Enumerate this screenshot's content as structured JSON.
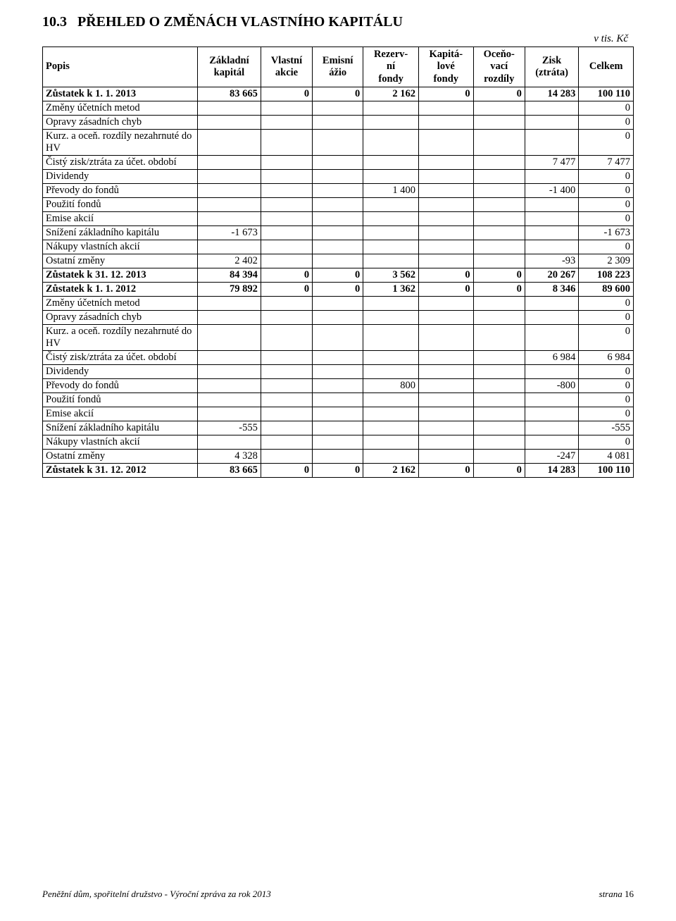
{
  "section_number": "10.3",
  "section_title": "PŘEHLED O ZMĚNÁCH VLASTNÍHO KAPITÁLU",
  "unit_note": "v tis. Kč",
  "columns": [
    "Popis",
    "Základní\nkapitál",
    "Vlastní\nakcie",
    "Emisní\nážio",
    "Rezerv-\nní\nfondy",
    "Kapitá-\nlové\nfondy",
    "Oceňo-\nvací\nrozdíly",
    "Zisk\n(ztráta)",
    "Celkem"
  ],
  "rows": [
    {
      "bold": true,
      "cells": [
        "Zůstatek k 1. 1. 2013",
        "83 665",
        "0",
        "0",
        "2 162",
        "0",
        "0",
        "14 283",
        "100 110"
      ]
    },
    {
      "bold": false,
      "cells": [
        "Změny účetních metod",
        "",
        "",
        "",
        "",
        "",
        "",
        "",
        "0"
      ]
    },
    {
      "bold": false,
      "cells": [
        "Opravy zásadních chyb",
        "",
        "",
        "",
        "",
        "",
        "",
        "",
        "0"
      ]
    },
    {
      "bold": false,
      "cells": [
        "Kurz. a oceň. rozdíly nezahrnuté do HV",
        "",
        "",
        "",
        "",
        "",
        "",
        "",
        "0"
      ]
    },
    {
      "bold": false,
      "cells": [
        "Čistý zisk/ztráta za účet. období",
        "",
        "",
        "",
        "",
        "",
        "",
        "7 477",
        "7 477"
      ]
    },
    {
      "bold": false,
      "cells": [
        "Dividendy",
        "",
        "",
        "",
        "",
        "",
        "",
        "",
        "0"
      ]
    },
    {
      "bold": false,
      "cells": [
        "Převody do fondů",
        "",
        "",
        "",
        "1 400",
        "",
        "",
        "-1 400",
        "0"
      ]
    },
    {
      "bold": false,
      "cells": [
        "Použití fondů",
        "",
        "",
        "",
        "",
        "",
        "",
        "",
        "0"
      ]
    },
    {
      "bold": false,
      "cells": [
        "Emise akcií",
        "",
        "",
        "",
        "",
        "",
        "",
        "",
        "0"
      ]
    },
    {
      "bold": false,
      "cells": [
        "Snížení základního kapitálu",
        "-1 673",
        "",
        "",
        "",
        "",
        "",
        "",
        "-1 673"
      ]
    },
    {
      "bold": false,
      "cells": [
        "Nákupy vlastních akcií",
        "",
        "",
        "",
        "",
        "",
        "",
        "",
        "0"
      ]
    },
    {
      "bold": false,
      "cells": [
        "Ostatní změny",
        "2 402",
        "",
        "",
        "",
        "",
        "",
        "-93",
        "2 309"
      ]
    },
    {
      "bold": true,
      "cells": [
        "Zůstatek k 31. 12. 2013",
        "84 394",
        "0",
        "0",
        "3 562",
        "0",
        "0",
        "20 267",
        "108 223"
      ]
    },
    {
      "bold": true,
      "cells": [
        "Zůstatek k 1. 1. 2012",
        "79 892",
        "0",
        "0",
        "1 362",
        "0",
        "0",
        "8 346",
        "89 600"
      ]
    },
    {
      "bold": false,
      "cells": [
        "Změny účetních metod",
        "",
        "",
        "",
        "",
        "",
        "",
        "",
        "0"
      ]
    },
    {
      "bold": false,
      "cells": [
        "Opravy zásadních chyb",
        "",
        "",
        "",
        "",
        "",
        "",
        "",
        "0"
      ]
    },
    {
      "bold": false,
      "cells": [
        "Kurz. a oceň. rozdíly nezahrnuté do HV",
        "",
        "",
        "",
        "",
        "",
        "",
        "",
        "0"
      ]
    },
    {
      "bold": false,
      "cells": [
        "Čistý zisk/ztráta za účet. období",
        "",
        "",
        "",
        "",
        "",
        "",
        "6 984",
        "6 984"
      ]
    },
    {
      "bold": false,
      "cells": [
        "Dividendy",
        "",
        "",
        "",
        "",
        "",
        "",
        "",
        "0"
      ]
    },
    {
      "bold": false,
      "cells": [
        "Převody do fondů",
        "",
        "",
        "",
        "800",
        "",
        "",
        "-800",
        "0"
      ]
    },
    {
      "bold": false,
      "cells": [
        "Použití fondů",
        "",
        "",
        "",
        "",
        "",
        "",
        "",
        "0"
      ]
    },
    {
      "bold": false,
      "cells": [
        "Emise akcií",
        "",
        "",
        "",
        "",
        "",
        "",
        "",
        "0"
      ]
    },
    {
      "bold": false,
      "cells": [
        "Snížení základního kapitálu",
        "-555",
        "",
        "",
        "",
        "",
        "",
        "",
        "-555"
      ]
    },
    {
      "bold": false,
      "cells": [
        "Nákupy vlastních akcií",
        "",
        "",
        "",
        "",
        "",
        "",
        "",
        "0"
      ]
    },
    {
      "bold": false,
      "cells": [
        "Ostatní změny",
        "4 328",
        "",
        "",
        "",
        "",
        "",
        "-247",
        "4 081"
      ]
    },
    {
      "bold": true,
      "cells": [
        "Zůstatek k 31. 12. 2012",
        "83 665",
        "0",
        "0",
        "2 162",
        "0",
        "0",
        "14 283",
        "100 110"
      ]
    }
  ],
  "footer": {
    "left": "Peněžní dům, spořitelní družstvo  -  Výroční zpráva za rok 2013",
    "right_label": "strana",
    "page_number": "16"
  }
}
